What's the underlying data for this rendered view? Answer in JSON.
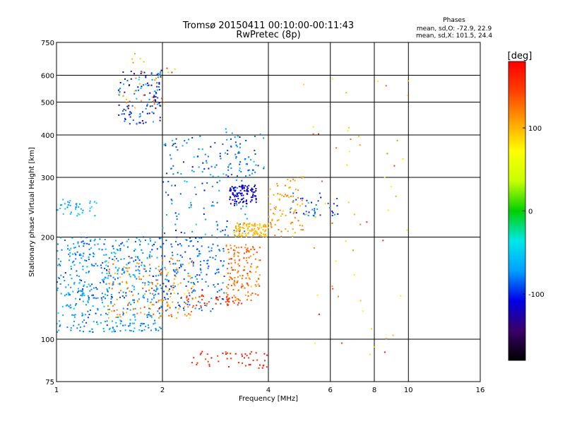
{
  "chart_data": {
    "type": "scatter",
    "title": "Tromsø 20150411 00:10:00-00:11:43",
    "subtitle": "RwPretec (8p)",
    "xlabel": "Frequency [MHz]",
    "ylabel": "Stationary phase Virtual Height [km]",
    "x_scale": "log",
    "y_scale": "log",
    "xlim": [
      1,
      16
    ],
    "ylim": [
      75,
      750
    ],
    "x_ticks": [
      "1",
      "2",
      "4",
      "6",
      "8",
      "10",
      "16"
    ],
    "y_ticks": [
      "75",
      "100",
      "200",
      "300",
      "400",
      "500",
      "600",
      "750"
    ],
    "grid": true,
    "stats": {
      "heading": "Phases",
      "line1": "mean, sd,O: -72.9, 22.9",
      "line2": "mean, sd,X: 101.5, 24.4"
    },
    "colorbar": {
      "label": "[deg]",
      "range": [
        -180,
        180
      ],
      "ticks": [
        "100",
        "0",
        "-100"
      ],
      "colors": [
        "#000000",
        "#3b0068",
        "#0000e6",
        "#00a0ff",
        "#00e8e8",
        "#00d000",
        "#c8ff00",
        "#ffff00",
        "#ffa000",
        "#ff4000",
        "#ff0000"
      ]
    },
    "clusters": [
      {
        "fmin": 1.0,
        "fmax": 2.0,
        "hmin": 105,
        "hmax": 200,
        "phase": -75,
        "spread": 22,
        "count": 520
      },
      {
        "fmin": 1.4,
        "fmax": 2.5,
        "hmin": 115,
        "hmax": 175,
        "phase": 115,
        "spread": 30,
        "count": 160
      },
      {
        "fmin": 1.0,
        "fmax": 1.3,
        "hmin": 230,
        "hmax": 260,
        "phase": -60,
        "spread": 20,
        "count": 40
      },
      {
        "fmin": 1.5,
        "fmax": 2.0,
        "hmin": 430,
        "hmax": 620,
        "phase": -100,
        "spread": 45,
        "count": 120
      },
      {
        "fmin": 1.5,
        "fmax": 2.2,
        "hmin": 480,
        "hmax": 700,
        "phase": 110,
        "spread": 40,
        "count": 30
      },
      {
        "fmin": 2.0,
        "fmax": 3.0,
        "hmin": 120,
        "hmax": 200,
        "phase": -85,
        "spread": 18,
        "count": 170
      },
      {
        "fmin": 2.3,
        "fmax": 3.4,
        "hmin": 125,
        "hmax": 135,
        "phase": 150,
        "spread": 15,
        "count": 45
      },
      {
        "fmin": 2.0,
        "fmax": 3.5,
        "hmin": 200,
        "hmax": 400,
        "phase": -80,
        "spread": 25,
        "count": 150
      },
      {
        "fmin": 3.0,
        "fmax": 3.8,
        "hmin": 130,
        "hmax": 190,
        "phase": 130,
        "spread": 25,
        "count": 140
      },
      {
        "fmin": 3.2,
        "fmax": 4.0,
        "hmin": 200,
        "hmax": 220,
        "phase": 100,
        "spread": 10,
        "count": 110
      },
      {
        "fmin": 3.1,
        "fmax": 3.7,
        "hmin": 250,
        "hmax": 285,
        "phase": -115,
        "spread": 8,
        "count": 100
      },
      {
        "fmin": 2.9,
        "fmax": 3.9,
        "hmin": 300,
        "hmax": 420,
        "phase": -80,
        "spread": 30,
        "count": 50
      },
      {
        "fmin": 4.0,
        "fmax": 5.0,
        "hmin": 200,
        "hmax": 300,
        "phase": 110,
        "spread": 15,
        "count": 80
      },
      {
        "fmin": 4.6,
        "fmax": 6.3,
        "hmin": 230,
        "hmax": 270,
        "phase": -90,
        "spread": 25,
        "count": 40
      },
      {
        "fmin": 2.4,
        "fmax": 4.0,
        "hmin": 82,
        "hmax": 92,
        "phase": 160,
        "spread": 15,
        "count": 50
      },
      {
        "fmin": 5.0,
        "fmax": 10.0,
        "hmin": 90,
        "hmax": 600,
        "phase": 110,
        "spread": 60,
        "count": 60
      }
    ]
  }
}
